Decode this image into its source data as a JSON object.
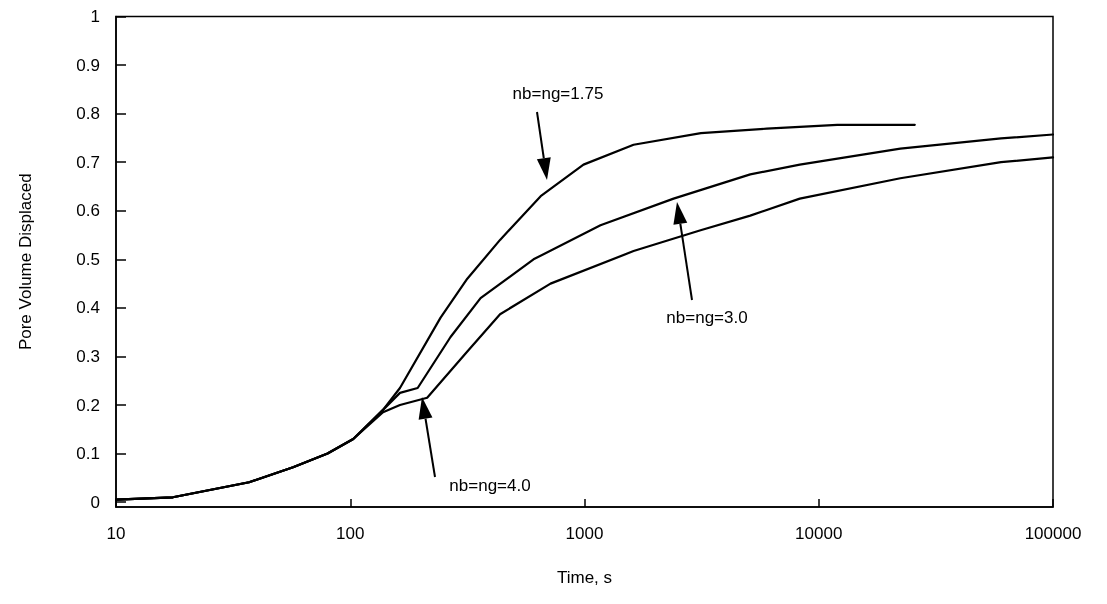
{
  "chart_data": {
    "type": "line",
    "xlabel": "Time, s",
    "ylabel": "Pore Volume Displaced",
    "log": "x",
    "xlim": [
      10,
      100000
    ],
    "xticks": [
      10,
      100,
      1000,
      10000,
      100000
    ],
    "ylim": [
      -0.01,
      1
    ],
    "yticks": [
      0,
      0.1,
      0.2,
      0.3,
      0.4,
      0.5,
      0.6,
      0.7,
      0.8,
      0.9,
      1
    ],
    "grid": false,
    "marker": "none",
    "line_style": "solid",
    "series": [
      {
        "color": "#000000",
        "x": [
          10,
          17.5,
          37,
          57,
          80,
          103,
          138,
          163,
          243,
          316,
          436,
          650,
          990,
          1620,
          3140,
          6000,
          12000,
          25700
        ],
        "values": [
          0.005,
          0.01,
          0.041,
          0.072,
          0.1,
          0.13,
          0.19,
          0.235,
          0.38,
          0.46,
          0.54,
          0.63,
          0.695,
          0.736,
          0.76,
          0.769,
          0.777,
          0.777
        ]
      },
      {
        "color": "#000000",
        "x": [
          10,
          17.5,
          37,
          57,
          80,
          103,
          138,
          163,
          194,
          268,
          360,
          606,
          1170,
          2400,
          5100,
          8300,
          22300,
          60000,
          100000
        ],
        "values": [
          0.005,
          0.01,
          0.041,
          0.072,
          0.1,
          0.13,
          0.19,
          0.225,
          0.235,
          0.34,
          0.42,
          0.5,
          0.57,
          0.625,
          0.675,
          0.695,
          0.728,
          0.749,
          0.757
        ]
      },
      {
        "color": "#000000",
        "x": [
          10,
          17.5,
          37,
          57,
          80,
          103,
          138,
          163,
          213,
          316,
          436,
          716,
          1620,
          3130,
          5100,
          8300,
          22300,
          60000,
          100000
        ],
        "values": [
          0.005,
          0.01,
          0.041,
          0.072,
          0.1,
          0.13,
          0.185,
          0.2,
          0.215,
          0.31,
          0.387,
          0.45,
          0.517,
          0.56,
          0.59,
          0.625,
          0.667,
          0.7,
          0.71
        ]
      }
    ],
    "annotations": [
      "nb=ng=1.75",
      "nb=ng=3.0",
      "nb=ng=4.0"
    ]
  }
}
